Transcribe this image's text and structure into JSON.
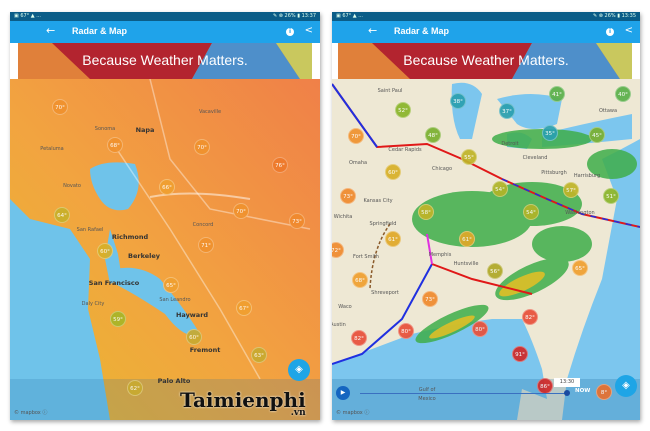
{
  "left_screen": {
    "status": {
      "left": "▣ 67° ▲ ...",
      "right": "✎ ⊗ 26% ▮ 13:37"
    },
    "appbar": {
      "title": "Radar & Map",
      "back_icon": "arrow-left",
      "info_icon": "info",
      "share_icon": "share"
    },
    "banner": {
      "text": "Because Weather Matters.",
      "colors": [
        "#e0803a",
        "#b3242f",
        "#4e8fca",
        "#c9c85e"
      ]
    },
    "places": [
      "Vacaville",
      "Napa",
      "Sonoma",
      "Petaluma",
      "Novato",
      "San Rafael",
      "Richmond",
      "Berkeley",
      "Concord",
      "San Francisco",
      "San Leandro",
      "Daly City",
      "Hayward",
      "Fremont",
      "Palo Alto"
    ],
    "temps": [
      {
        "value": "70°",
        "color": "#f0922e"
      },
      {
        "value": "68°",
        "color": "#f0922e"
      },
      {
        "value": "70°",
        "color": "#f0922e"
      },
      {
        "value": "76°",
        "color": "#ee7a2c"
      },
      {
        "value": "66°",
        "color": "#f0a030"
      },
      {
        "value": "64°",
        "color": "#c8b02a"
      },
      {
        "value": "70°",
        "color": "#f0922e"
      },
      {
        "value": "73°",
        "color": "#f08a2e"
      },
      {
        "value": "60°",
        "color": "#d8b028"
      },
      {
        "value": "71°",
        "color": "#f0922e"
      },
      {
        "value": "65°",
        "color": "#f0a030"
      },
      {
        "value": "67°",
        "color": "#f0a030"
      },
      {
        "value": "59°",
        "color": "#a8b528"
      },
      {
        "value": "60°",
        "color": "#c8aa30"
      },
      {
        "value": "63°",
        "color": "#c8aa30"
      },
      {
        "value": "62°",
        "color": "#c8aa30"
      }
    ],
    "attribution": "© mapbox ⓘ",
    "layers_icon": "layers"
  },
  "right_screen": {
    "status": {
      "left": "▣ 67° ▲ ...",
      "right": "✎ ⊗ 26% ▮ 13:35"
    },
    "appbar": {
      "title": "Radar & Map",
      "back_icon": "arrow-left",
      "info_icon": "info",
      "share_icon": "share"
    },
    "banner": {
      "text": "Because Weather Matters."
    },
    "places": [
      "Saint Paul",
      "Omaha",
      "Cedar Rapids",
      "Chicago",
      "Detroit",
      "Cleveland",
      "Pittsburgh",
      "Kansas City",
      "Wichita",
      "Springfield",
      "Harrisburg",
      "Washington",
      "Fort Smith",
      "Memphis",
      "Huntsville",
      "Shreveport",
      "Waco",
      "Austin",
      "Ottawa",
      "Gulf of",
      "Mexico"
    ],
    "temps": [
      {
        "value": "52°",
        "color": "#8ab52a"
      },
      {
        "value": "38°",
        "color": "#2aa0b0"
      },
      {
        "value": "37°",
        "color": "#2aa0b0"
      },
      {
        "value": "41°",
        "color": "#5ab04a"
      },
      {
        "value": "40°",
        "color": "#5ab04a"
      },
      {
        "value": "70°",
        "color": "#f0922e"
      },
      {
        "value": "48°",
        "color": "#7ab030"
      },
      {
        "value": "35°",
        "color": "#2aa0b0"
      },
      {
        "value": "45°",
        "color": "#7ab030"
      },
      {
        "value": "55°",
        "color": "#c0b428"
      },
      {
        "value": "60°",
        "color": "#d8b028"
      },
      {
        "value": "73°",
        "color": "#f08a2e"
      },
      {
        "value": "54°",
        "color": "#b0b428"
      },
      {
        "value": "57°",
        "color": "#c0b428"
      },
      {
        "value": "51°",
        "color": "#8ab52a"
      },
      {
        "value": "58°",
        "color": "#c0b428"
      },
      {
        "value": "54°",
        "color": "#b0b428"
      },
      {
        "value": "61°",
        "color": "#e0a828"
      },
      {
        "value": "61°",
        "color": "#e0a828"
      },
      {
        "value": "72°",
        "color": "#f08a2e"
      },
      {
        "value": "68°",
        "color": "#f0a030"
      },
      {
        "value": "56°",
        "color": "#b0a828"
      },
      {
        "value": "65°",
        "color": "#f0a030"
      },
      {
        "value": "73°",
        "color": "#f08a2e"
      },
      {
        "value": "80°",
        "color": "#e8503a"
      },
      {
        "value": "82°",
        "color": "#e8503a"
      },
      {
        "value": "80°",
        "color": "#e8503a"
      },
      {
        "value": "82°",
        "color": "#e8503a"
      },
      {
        "value": "91°",
        "color": "#d02828"
      },
      {
        "value": "86°",
        "color": "#d02828"
      }
    ],
    "timeline": {
      "time_label": "13:30",
      "now_label": "NOW",
      "now_temp": "8°",
      "play_icon": "play",
      "progress": 0.9
    },
    "attribution": "© mapbox ⓘ",
    "layers_icon": "layers"
  },
  "watermark": {
    "text": "Taimienphi",
    ".vn": ".vn"
  }
}
